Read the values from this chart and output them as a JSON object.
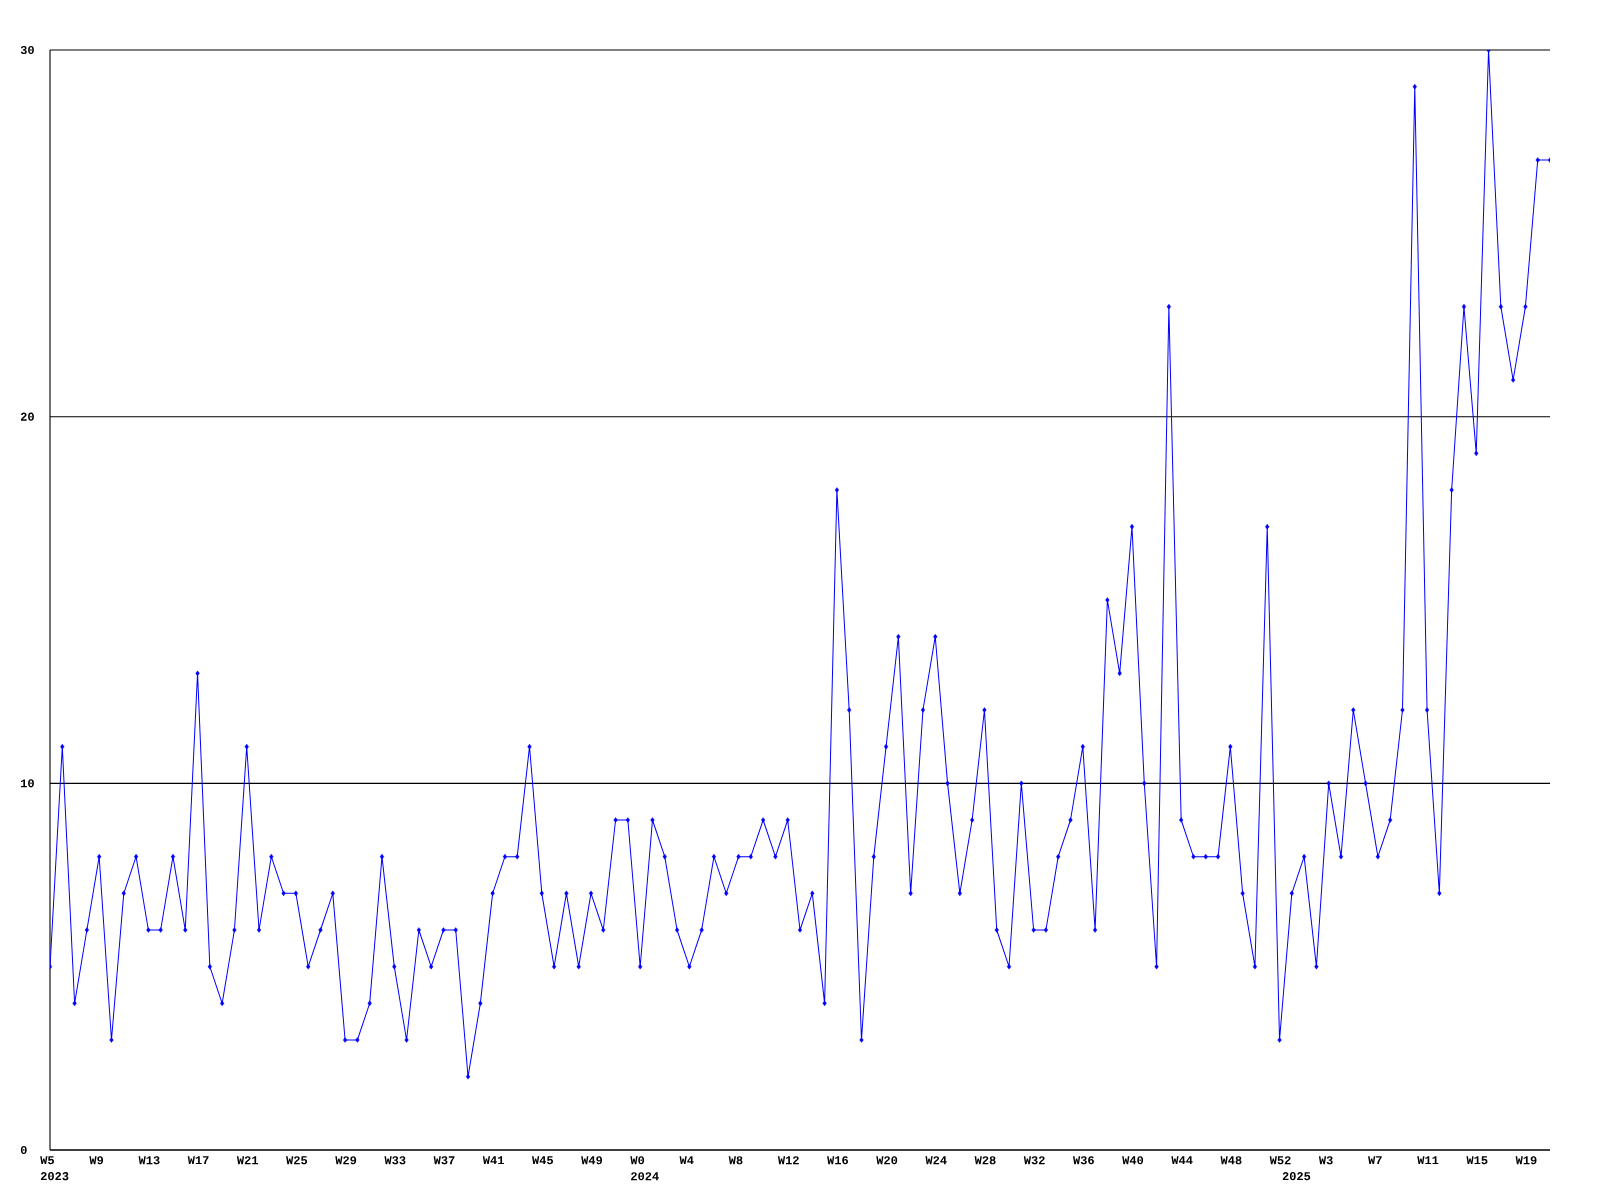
{
  "chart_data": {
    "type": "line",
    "categories": [
      "W5\n2023",
      null,
      null,
      null,
      "W9",
      null,
      null,
      null,
      "W13",
      null,
      null,
      null,
      "W17",
      null,
      null,
      null,
      "W21",
      null,
      null,
      null,
      "W25",
      null,
      null,
      null,
      "W29",
      null,
      null,
      null,
      "W33",
      null,
      null,
      null,
      "W37",
      null,
      null,
      null,
      "W41",
      null,
      null,
      null,
      "W45",
      null,
      null,
      null,
      "W49",
      null,
      null,
      null,
      "W0\n2024",
      null,
      null,
      null,
      "W4",
      null,
      null,
      null,
      "W8",
      null,
      null,
      null,
      "W12",
      null,
      null,
      null,
      "W16",
      null,
      null,
      null,
      "W20",
      null,
      null,
      null,
      "W24",
      null,
      null,
      null,
      "W28",
      null,
      null,
      null,
      "W32",
      null,
      null,
      null,
      "W36",
      null,
      null,
      null,
      "W40",
      null,
      null,
      null,
      "W44",
      null,
      null,
      null,
      "W48",
      null,
      null,
      null,
      "W52",
      "\n2025",
      null,
      null,
      "W3",
      null,
      null,
      null,
      "W7",
      null,
      null,
      null,
      "W11",
      null,
      null,
      null,
      "W15",
      null,
      null,
      null,
      "W19",
      null,
      null
    ],
    "values": [
      5,
      11,
      4,
      6,
      8,
      3,
      7,
      8,
      6,
      6,
      8,
      6,
      13,
      5,
      4,
      6,
      11,
      6,
      8,
      7,
      7,
      5,
      6,
      7,
      3,
      3,
      4,
      8,
      5,
      3,
      6,
      5,
      6,
      6,
      2,
      4,
      7,
      8,
      8,
      11,
      7,
      5,
      7,
      5,
      7,
      6,
      9,
      9,
      5,
      9,
      8,
      6,
      5,
      6,
      8,
      7,
      8,
      8,
      9,
      8,
      9,
      6,
      7,
      4,
      18,
      12,
      3,
      8,
      11,
      14,
      7,
      12,
      14,
      10,
      7,
      9,
      12,
      6,
      5,
      10,
      6,
      6,
      8,
      9,
      11,
      6,
      15,
      13,
      17,
      10,
      5,
      23,
      9,
      8,
      8,
      8,
      11,
      7,
      5,
      17,
      3,
      7,
      8,
      5,
      10,
      8,
      12,
      10,
      8,
      9,
      12,
      29,
      12,
      7,
      18,
      23,
      19,
      30,
      23,
      21,
      23,
      27,
      27
    ],
    "color": "#0000ff",
    "ylim": [
      0,
      30
    ],
    "yticks": [
      0,
      10,
      20,
      30
    ],
    "grid": "y",
    "marker": "diamond",
    "line_style": "solid"
  }
}
